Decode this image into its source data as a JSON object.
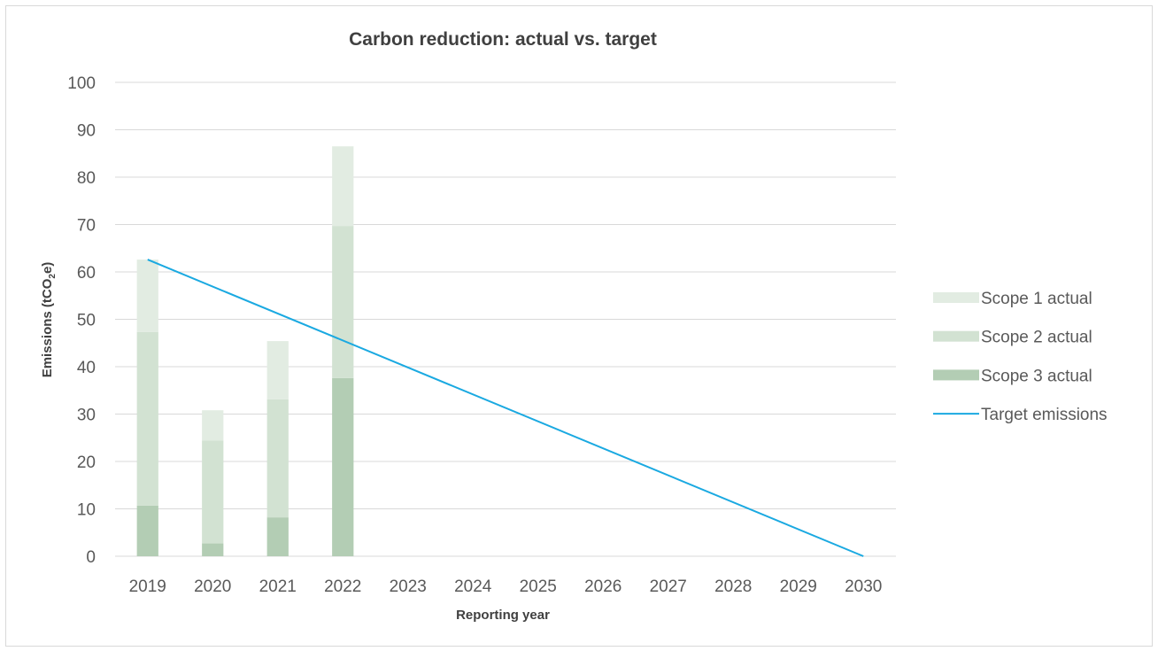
{
  "chart_data": {
    "type": "bar",
    "stacked": true,
    "title": "Carbon reduction: actual vs. target",
    "xlabel": "Reporting year",
    "ylabel_main": "Emissions (tCO",
    "ylabel_sub": "2",
    "ylabel_tail": "e)",
    "categories": [
      "2019",
      "2020",
      "2021",
      "2022",
      "2023",
      "2024",
      "2025",
      "2026",
      "2027",
      "2028",
      "2029",
      "2030"
    ],
    "yticks": [
      "0",
      "10",
      "20",
      "30",
      "40",
      "50",
      "60",
      "70",
      "80",
      "90",
      "100"
    ],
    "ylim": [
      0,
      100
    ],
    "grid": true,
    "legend_position": "right",
    "series": [
      {
        "name": "Scope 3 actual",
        "color": "#b3cdb4",
        "values": [
          10.7,
          2.7,
          8.2,
          37.6,
          null,
          null,
          null,
          null,
          null,
          null,
          null,
          null
        ]
      },
      {
        "name": "Scope 2 actual",
        "color": "#d2e2d2",
        "values": [
          36.6,
          21.7,
          24.9,
          32.1,
          null,
          null,
          null,
          null,
          null,
          null,
          null,
          null
        ]
      },
      {
        "name": "Scope 1 actual",
        "color": "#e2ece2",
        "values": [
          15.3,
          6.4,
          12.3,
          16.8,
          null,
          null,
          null,
          null,
          null,
          null,
          null,
          null
        ]
      }
    ],
    "line": {
      "name": "Target emissions",
      "color": "#1aa9e1",
      "x_start": "2019",
      "x_end": "2030",
      "y_start": 62.6,
      "y_end": 0
    },
    "legend": [
      {
        "name": "Scope 1 actual",
        "kind": "box",
        "color": "#e2ece2"
      },
      {
        "name": "Scope 2 actual",
        "kind": "box",
        "color": "#d2e2d2"
      },
      {
        "name": "Scope 3 actual",
        "kind": "box",
        "color": "#b3cdb4"
      },
      {
        "name": "Target emissions",
        "kind": "line",
        "color": "#1aa9e1"
      }
    ]
  }
}
